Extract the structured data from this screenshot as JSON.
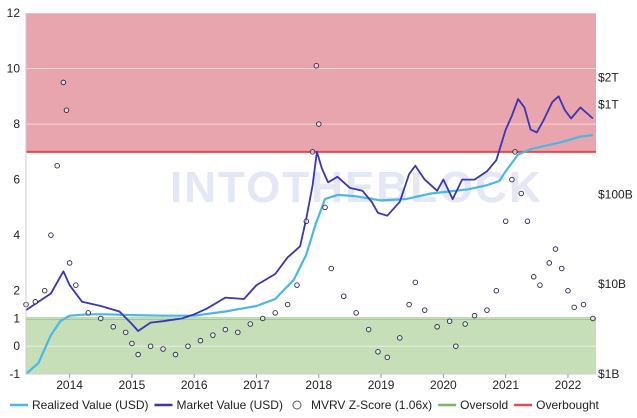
{
  "chart_data": {
    "type": "line",
    "watermark": "INTOTHEBLOCK",
    "x_ticks": [
      "2014",
      "2015",
      "2016",
      "2017",
      "2018",
      "2019",
      "2020",
      "2021",
      "2022"
    ],
    "y_left": {
      "min": -1,
      "max": 12,
      "ticks": [
        "-1",
        "0",
        "1",
        "2",
        "4",
        "6",
        "8",
        "10",
        "12"
      ]
    },
    "y_right": {
      "scale": "log",
      "min_usd": 1000000000.0,
      "ticks": [
        "$1B",
        "$10B",
        "$100B",
        "$1T",
        "$2T"
      ]
    },
    "zones": [
      {
        "name": "Overbought",
        "from": 7,
        "to": 12,
        "color": "#e8a5ad",
        "line_color": "#e5484d"
      },
      {
        "name": "Oversold",
        "from": -1,
        "to": 1,
        "color": "#c6dfb9",
        "line_color": "#7fb36a"
      }
    ],
    "series": [
      {
        "name": "Realized Value (USD)",
        "color": "#4ab8e3",
        "points": [
          [
            2013.3,
            -1.0
          ],
          [
            2013.5,
            -0.6
          ],
          [
            2013.6,
            -0.1
          ],
          [
            2013.7,
            0.4
          ],
          [
            2013.85,
            0.9
          ],
          [
            2014.0,
            1.1
          ],
          [
            2014.3,
            1.15
          ],
          [
            2014.6,
            1.15
          ],
          [
            2015.0,
            1.12
          ],
          [
            2015.5,
            1.1
          ],
          [
            2016.0,
            1.1
          ],
          [
            2016.5,
            1.25
          ],
          [
            2017.0,
            1.45
          ],
          [
            2017.3,
            1.7
          ],
          [
            2017.6,
            2.4
          ],
          [
            2017.8,
            3.3
          ],
          [
            2017.95,
            4.4
          ],
          [
            2018.1,
            5.3
          ],
          [
            2018.3,
            5.45
          ],
          [
            2018.6,
            5.4
          ],
          [
            2019.0,
            5.25
          ],
          [
            2019.4,
            5.3
          ],
          [
            2019.8,
            5.5
          ],
          [
            2020.0,
            5.55
          ],
          [
            2020.4,
            5.65
          ],
          [
            2020.7,
            5.8
          ],
          [
            2020.9,
            5.95
          ],
          [
            2021.0,
            6.3
          ],
          [
            2021.2,
            6.9
          ],
          [
            2021.4,
            7.1
          ],
          [
            2021.6,
            7.2
          ],
          [
            2021.9,
            7.35
          ],
          [
            2022.2,
            7.55
          ],
          [
            2022.4,
            7.6
          ]
        ]
      },
      {
        "name": "Market Value (USD)",
        "color": "#3b35b5",
        "points": [
          [
            2013.3,
            1.3
          ],
          [
            2013.5,
            1.6
          ],
          [
            2013.7,
            1.9
          ],
          [
            2013.9,
            2.7
          ],
          [
            2014.0,
            2.2
          ],
          [
            2014.2,
            1.6
          ],
          [
            2014.5,
            1.45
          ],
          [
            2014.8,
            1.25
          ],
          [
            2015.0,
            0.8
          ],
          [
            2015.1,
            0.55
          ],
          [
            2015.3,
            0.85
          ],
          [
            2015.5,
            0.9
          ],
          [
            2015.8,
            1.0
          ],
          [
            2016.0,
            1.15
          ],
          [
            2016.2,
            1.35
          ],
          [
            2016.5,
            1.75
          ],
          [
            2016.8,
            1.7
          ],
          [
            2017.0,
            2.2
          ],
          [
            2017.3,
            2.6
          ],
          [
            2017.5,
            3.2
          ],
          [
            2017.7,
            3.6
          ],
          [
            2017.8,
            4.6
          ],
          [
            2017.9,
            5.8
          ],
          [
            2017.97,
            7.0
          ],
          [
            2018.05,
            6.4
          ],
          [
            2018.15,
            5.9
          ],
          [
            2018.3,
            6.1
          ],
          [
            2018.5,
            5.7
          ],
          [
            2018.7,
            5.6
          ],
          [
            2018.85,
            5.2
          ],
          [
            2018.95,
            4.8
          ],
          [
            2019.1,
            4.7
          ],
          [
            2019.3,
            5.2
          ],
          [
            2019.45,
            6.2
          ],
          [
            2019.55,
            6.5
          ],
          [
            2019.7,
            6.0
          ],
          [
            2019.9,
            5.6
          ],
          [
            2020.0,
            6.0
          ],
          [
            2020.15,
            5.3
          ],
          [
            2020.3,
            6.0
          ],
          [
            2020.5,
            6.0
          ],
          [
            2020.7,
            6.3
          ],
          [
            2020.85,
            6.7
          ],
          [
            2021.0,
            7.8
          ],
          [
            2021.1,
            8.3
          ],
          [
            2021.2,
            8.9
          ],
          [
            2021.3,
            8.6
          ],
          [
            2021.4,
            7.8
          ],
          [
            2021.5,
            7.7
          ],
          [
            2021.6,
            8.1
          ],
          [
            2021.75,
            8.8
          ],
          [
            2021.85,
            9.0
          ],
          [
            2021.95,
            8.5
          ],
          [
            2022.05,
            8.2
          ],
          [
            2022.2,
            8.6
          ],
          [
            2022.3,
            8.4
          ],
          [
            2022.4,
            8.2
          ]
        ]
      },
      {
        "name": "MVRV Z-Score (1.06x)",
        "color": "#2a2750",
        "style": "scatter",
        "points": [
          [
            2013.3,
            1.5
          ],
          [
            2013.45,
            1.6
          ],
          [
            2013.6,
            2.0
          ],
          [
            2013.7,
            4.0
          ],
          [
            2013.8,
            6.5
          ],
          [
            2013.9,
            9.5
          ],
          [
            2013.95,
            8.5
          ],
          [
            2014.0,
            3.0
          ],
          [
            2014.1,
            2.2
          ],
          [
            2014.3,
            1.2
          ],
          [
            2014.5,
            1.0
          ],
          [
            2014.7,
            0.7
          ],
          [
            2014.9,
            0.5
          ],
          [
            2015.0,
            0.1
          ],
          [
            2015.1,
            -0.3
          ],
          [
            2015.3,
            0.0
          ],
          [
            2015.5,
            -0.1
          ],
          [
            2015.7,
            -0.3
          ],
          [
            2015.9,
            0.0
          ],
          [
            2016.1,
            0.2
          ],
          [
            2016.3,
            0.4
          ],
          [
            2016.5,
            0.6
          ],
          [
            2016.7,
            0.5
          ],
          [
            2016.9,
            0.8
          ],
          [
            2017.1,
            1.0
          ],
          [
            2017.3,
            1.2
          ],
          [
            2017.5,
            1.5
          ],
          [
            2017.65,
            2.2
          ],
          [
            2017.8,
            4.5
          ],
          [
            2017.9,
            7.0
          ],
          [
            2017.96,
            10.1
          ],
          [
            2018.0,
            8.0
          ],
          [
            2018.1,
            5.0
          ],
          [
            2018.2,
            2.8
          ],
          [
            2018.4,
            1.8
          ],
          [
            2018.6,
            1.2
          ],
          [
            2018.8,
            0.6
          ],
          [
            2018.95,
            -0.2
          ],
          [
            2019.1,
            -0.4
          ],
          [
            2019.3,
            0.3
          ],
          [
            2019.45,
            1.5
          ],
          [
            2019.55,
            2.3
          ],
          [
            2019.7,
            1.3
          ],
          [
            2019.9,
            0.7
          ],
          [
            2020.1,
            0.9
          ],
          [
            2020.2,
            0.0
          ],
          [
            2020.35,
            0.8
          ],
          [
            2020.5,
            1.1
          ],
          [
            2020.7,
            1.3
          ],
          [
            2020.85,
            2.0
          ],
          [
            2021.0,
            4.5
          ],
          [
            2021.1,
            6.0
          ],
          [
            2021.15,
            7.0
          ],
          [
            2021.25,
            5.5
          ],
          [
            2021.35,
            4.5
          ],
          [
            2021.45,
            2.5
          ],
          [
            2021.55,
            2.2
          ],
          [
            2021.7,
            3.0
          ],
          [
            2021.8,
            3.5
          ],
          [
            2021.9,
            2.8
          ],
          [
            2022.0,
            2.0
          ],
          [
            2022.1,
            1.4
          ],
          [
            2022.25,
            1.5
          ],
          [
            2022.4,
            1.0
          ]
        ]
      }
    ],
    "legend": [
      {
        "label": "Realized Value (USD)",
        "kind": "line",
        "color": "#4ab8e3"
      },
      {
        "label": "Market Value (USD)",
        "kind": "line",
        "color": "#3b35b5"
      },
      {
        "label": "MVRV Z-Score (1.06x)",
        "kind": "circle",
        "color": "#555555"
      },
      {
        "label": "Oversold",
        "kind": "line",
        "color": "#7fb36a"
      },
      {
        "label": "Overbought",
        "kind": "line",
        "color": "#e5484d"
      }
    ]
  }
}
